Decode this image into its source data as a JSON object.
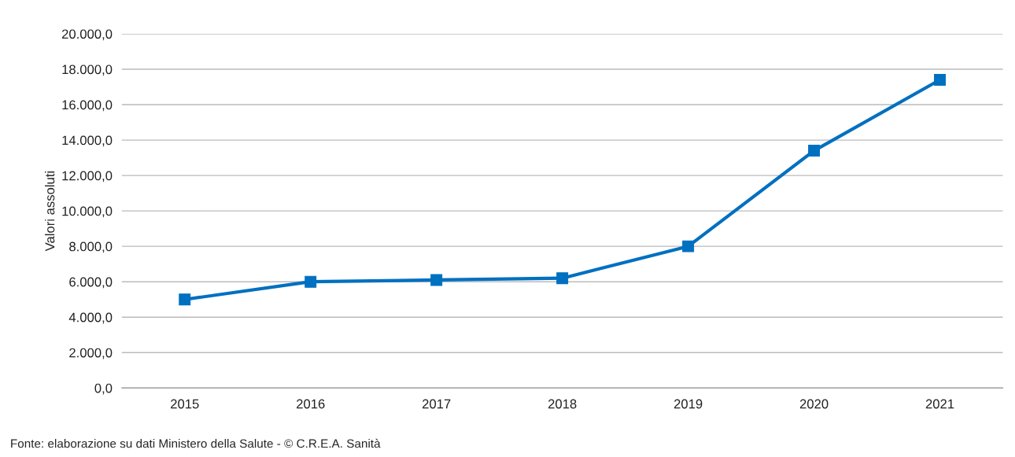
{
  "chart_data": {
    "type": "line",
    "ylabel": "Valori assoluti",
    "categories": [
      "2015",
      "2016",
      "2017",
      "2018",
      "2019",
      "2020",
      "2021"
    ],
    "series": [
      {
        "color": "#0070c0",
        "values": [
          5000,
          6000,
          6100,
          6200,
          8000,
          13400,
          17400
        ]
      }
    ],
    "ylim": [
      0,
      20000
    ],
    "yticks": [
      {
        "value": 0,
        "label": "0,0"
      },
      {
        "value": 2000,
        "label": "2.000,0"
      },
      {
        "value": 4000,
        "label": "4.000,0"
      },
      {
        "value": 6000,
        "label": "6.000,0"
      },
      {
        "value": 8000,
        "label": "8.000,0"
      },
      {
        "value": 10000,
        "label": "10.000,0"
      },
      {
        "value": 12000,
        "label": "12.000,0"
      },
      {
        "value": 14000,
        "label": "14.000,0"
      },
      {
        "value": 16000,
        "label": "16.000,0"
      },
      {
        "value": 18000,
        "label": "18.000,0"
      },
      {
        "value": 20000,
        "label": "20.000,0"
      }
    ],
    "grid": "y",
    "marker": "square",
    "line_style": "solid",
    "annotations": [
      "Fonte: elaborazione su dati Ministero della Salute - © C.R.E.A. Sanità"
    ]
  }
}
